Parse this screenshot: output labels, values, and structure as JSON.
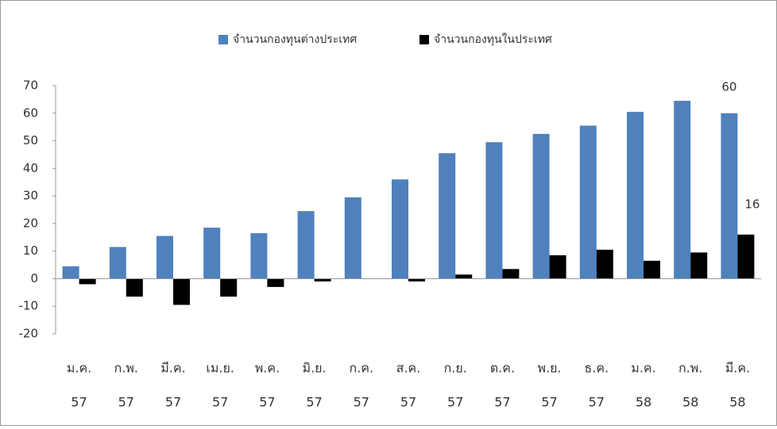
{
  "chart_data": {
    "type": "bar",
    "categories": [
      [
        "ม.ค.",
        "57"
      ],
      [
        "ก.พ.",
        "57"
      ],
      [
        "มี.ค.",
        "57"
      ],
      [
        "เม.ย.",
        "57"
      ],
      [
        "พ.ค.",
        "57"
      ],
      [
        "มิ.ย.",
        "57"
      ],
      [
        "ก.ค.",
        "57"
      ],
      [
        "ส.ค.",
        "57"
      ],
      [
        "ก.ย.",
        "57"
      ],
      [
        "ต.ค.",
        "57"
      ],
      [
        "พ.ย.",
        "57"
      ],
      [
        "ธ.ค.",
        "57"
      ],
      [
        "ม.ค.",
        "58"
      ],
      [
        "ก.พ.",
        "58"
      ],
      [
        "มี.ค.",
        "58"
      ]
    ],
    "series": [
      {
        "name": "จำนวนกองทุนต่างประเทศ",
        "color": "#4f81bd",
        "values": [
          4.5,
          11.5,
          15.5,
          18.5,
          16.5,
          24.5,
          29.5,
          36,
          45.5,
          49.5,
          52.5,
          55.5,
          60.5,
          64.5,
          60
        ]
      },
      {
        "name": "จำนวนกองทุนในประเทศ",
        "color": "#000000",
        "values": [
          -2,
          -6.5,
          -9.5,
          -6.5,
          -3,
          -1,
          0,
          -1,
          1.5,
          3.5,
          8.5,
          10.5,
          6.5,
          9.5,
          16
        ]
      }
    ],
    "ylim": [
      -20,
      70
    ],
    "yticks": [
      -20,
      -10,
      0,
      10,
      20,
      30,
      40,
      50,
      60,
      70
    ],
    "grid": false
  }
}
